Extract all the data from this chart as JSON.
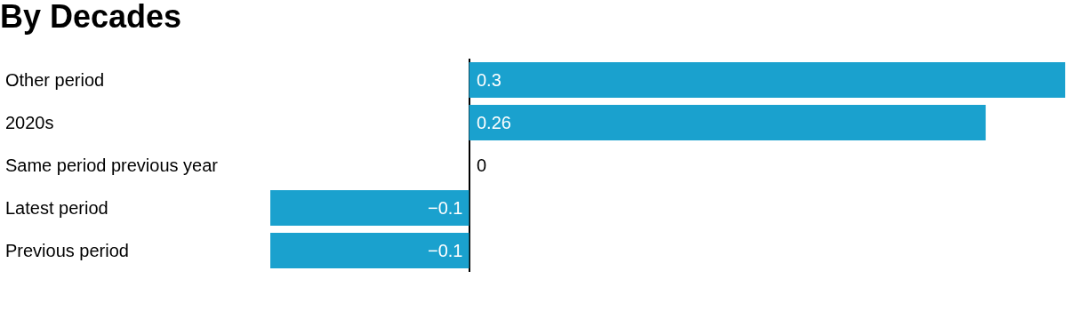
{
  "chart_data": {
    "type": "bar",
    "title": "By Decades",
    "orientation": "horizontal",
    "categories": [
      "Other period",
      "2020s",
      "Same period previous year",
      "Latest period",
      "Previous period"
    ],
    "values": [
      0.3,
      0.26,
      0,
      -0.1,
      -0.1
    ],
    "value_labels": [
      "0.3",
      "0.26",
      "0",
      "−0.1",
      "−0.1"
    ],
    "color": "#1aa1ce",
    "xlim": [
      -0.1,
      0.3
    ]
  }
}
